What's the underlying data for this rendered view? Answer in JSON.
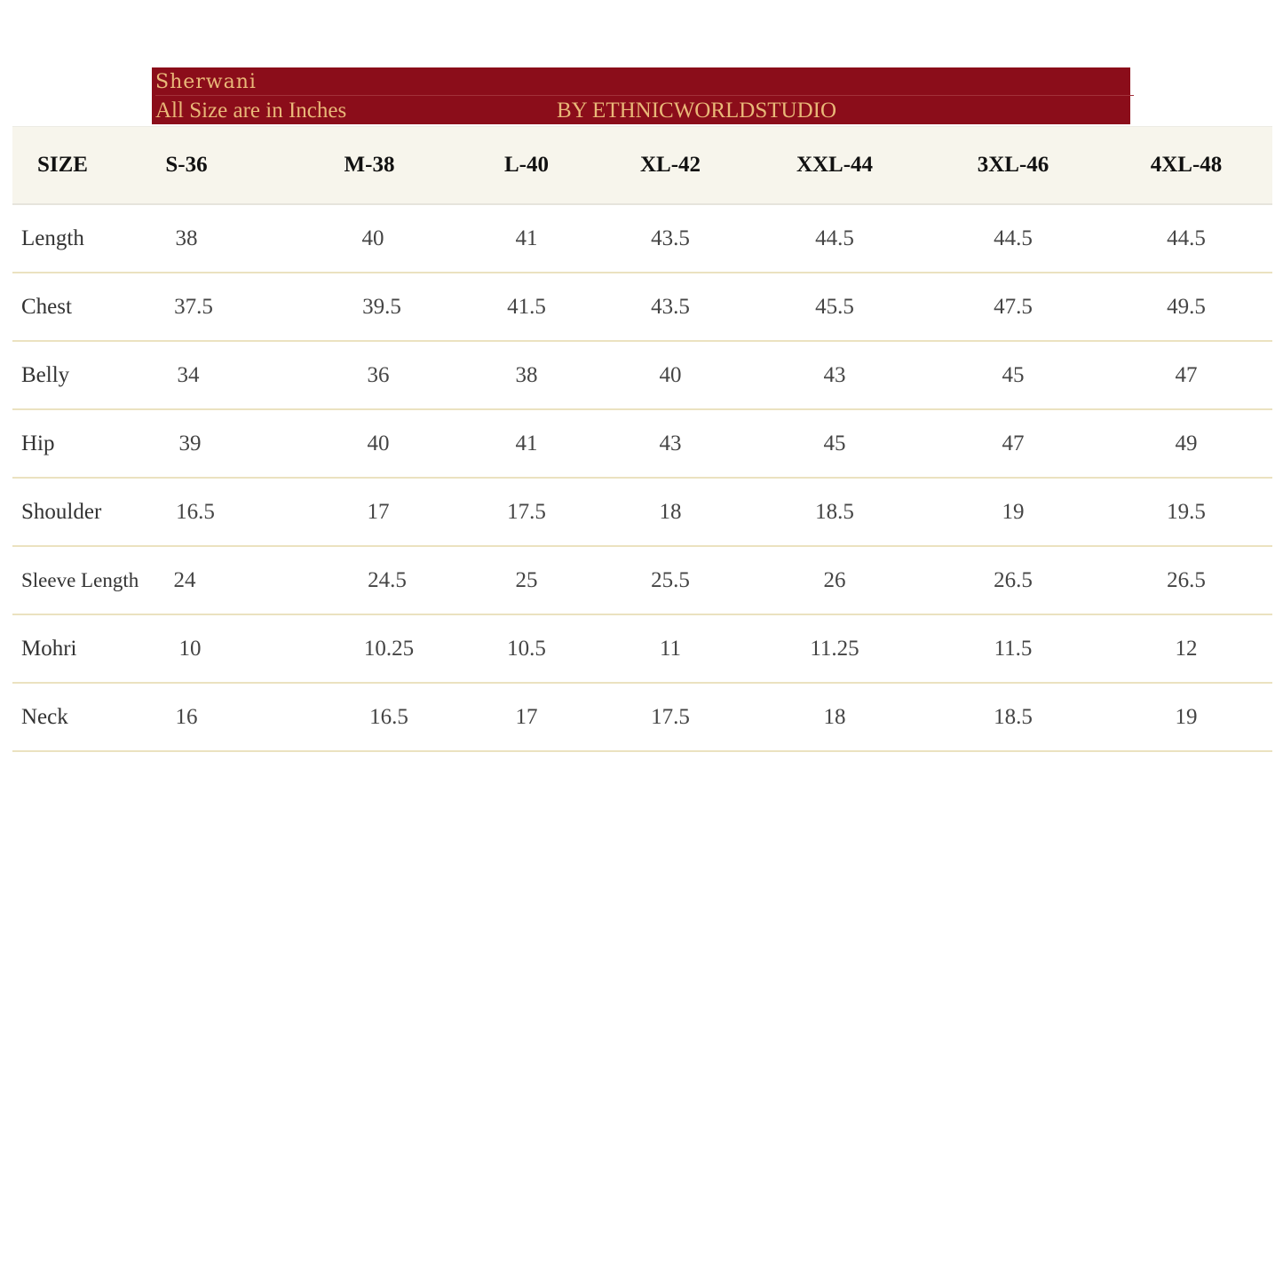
{
  "banner": {
    "title": "Sherwani",
    "note": "All Size are in Inches",
    "brand": "BY ETHNICWORLDSTUDIO",
    "background": "#8b0d1a",
    "text_color": "#e9b878"
  },
  "table": {
    "corner": "SIZE",
    "sizes": [
      "S-36",
      "M-38",
      "L-40",
      "XL-42",
      "XXL-44",
      "3XL-46",
      "4XL-48"
    ],
    "rows": [
      {
        "label": "Length",
        "values": [
          "38",
          "40",
          "41",
          "43.5",
          "44.5",
          "44.5",
          "44.5"
        ]
      },
      {
        "label": "Chest",
        "values": [
          "37.5",
          "39.5",
          "41.5",
          "43.5",
          "45.5",
          "47.5",
          "49.5"
        ]
      },
      {
        "label": "Belly",
        "values": [
          "34",
          "36",
          "38",
          "40",
          "43",
          "45",
          "47"
        ]
      },
      {
        "label": "Hip",
        "values": [
          "39",
          "40",
          "41",
          "43",
          "45",
          "47",
          "49"
        ]
      },
      {
        "label": "Shoulder",
        "values": [
          "16.5",
          "17",
          "17.5",
          "18",
          "18.5",
          "19",
          "19.5"
        ]
      },
      {
        "label": "Sleeve Length",
        "values": [
          "24",
          "24.5",
          "25",
          "25.5",
          "26",
          "26.5",
          "26.5"
        ]
      },
      {
        "label": "Mohri",
        "values": [
          "10",
          "10.25",
          "10.5",
          "11",
          "11.25",
          "11.5",
          "12"
        ]
      },
      {
        "label": "Neck",
        "values": [
          "16",
          "16.5",
          "17",
          "17.5",
          "18",
          "18.5",
          "19"
        ]
      }
    ],
    "header_background": "#f7f5ec"
  }
}
